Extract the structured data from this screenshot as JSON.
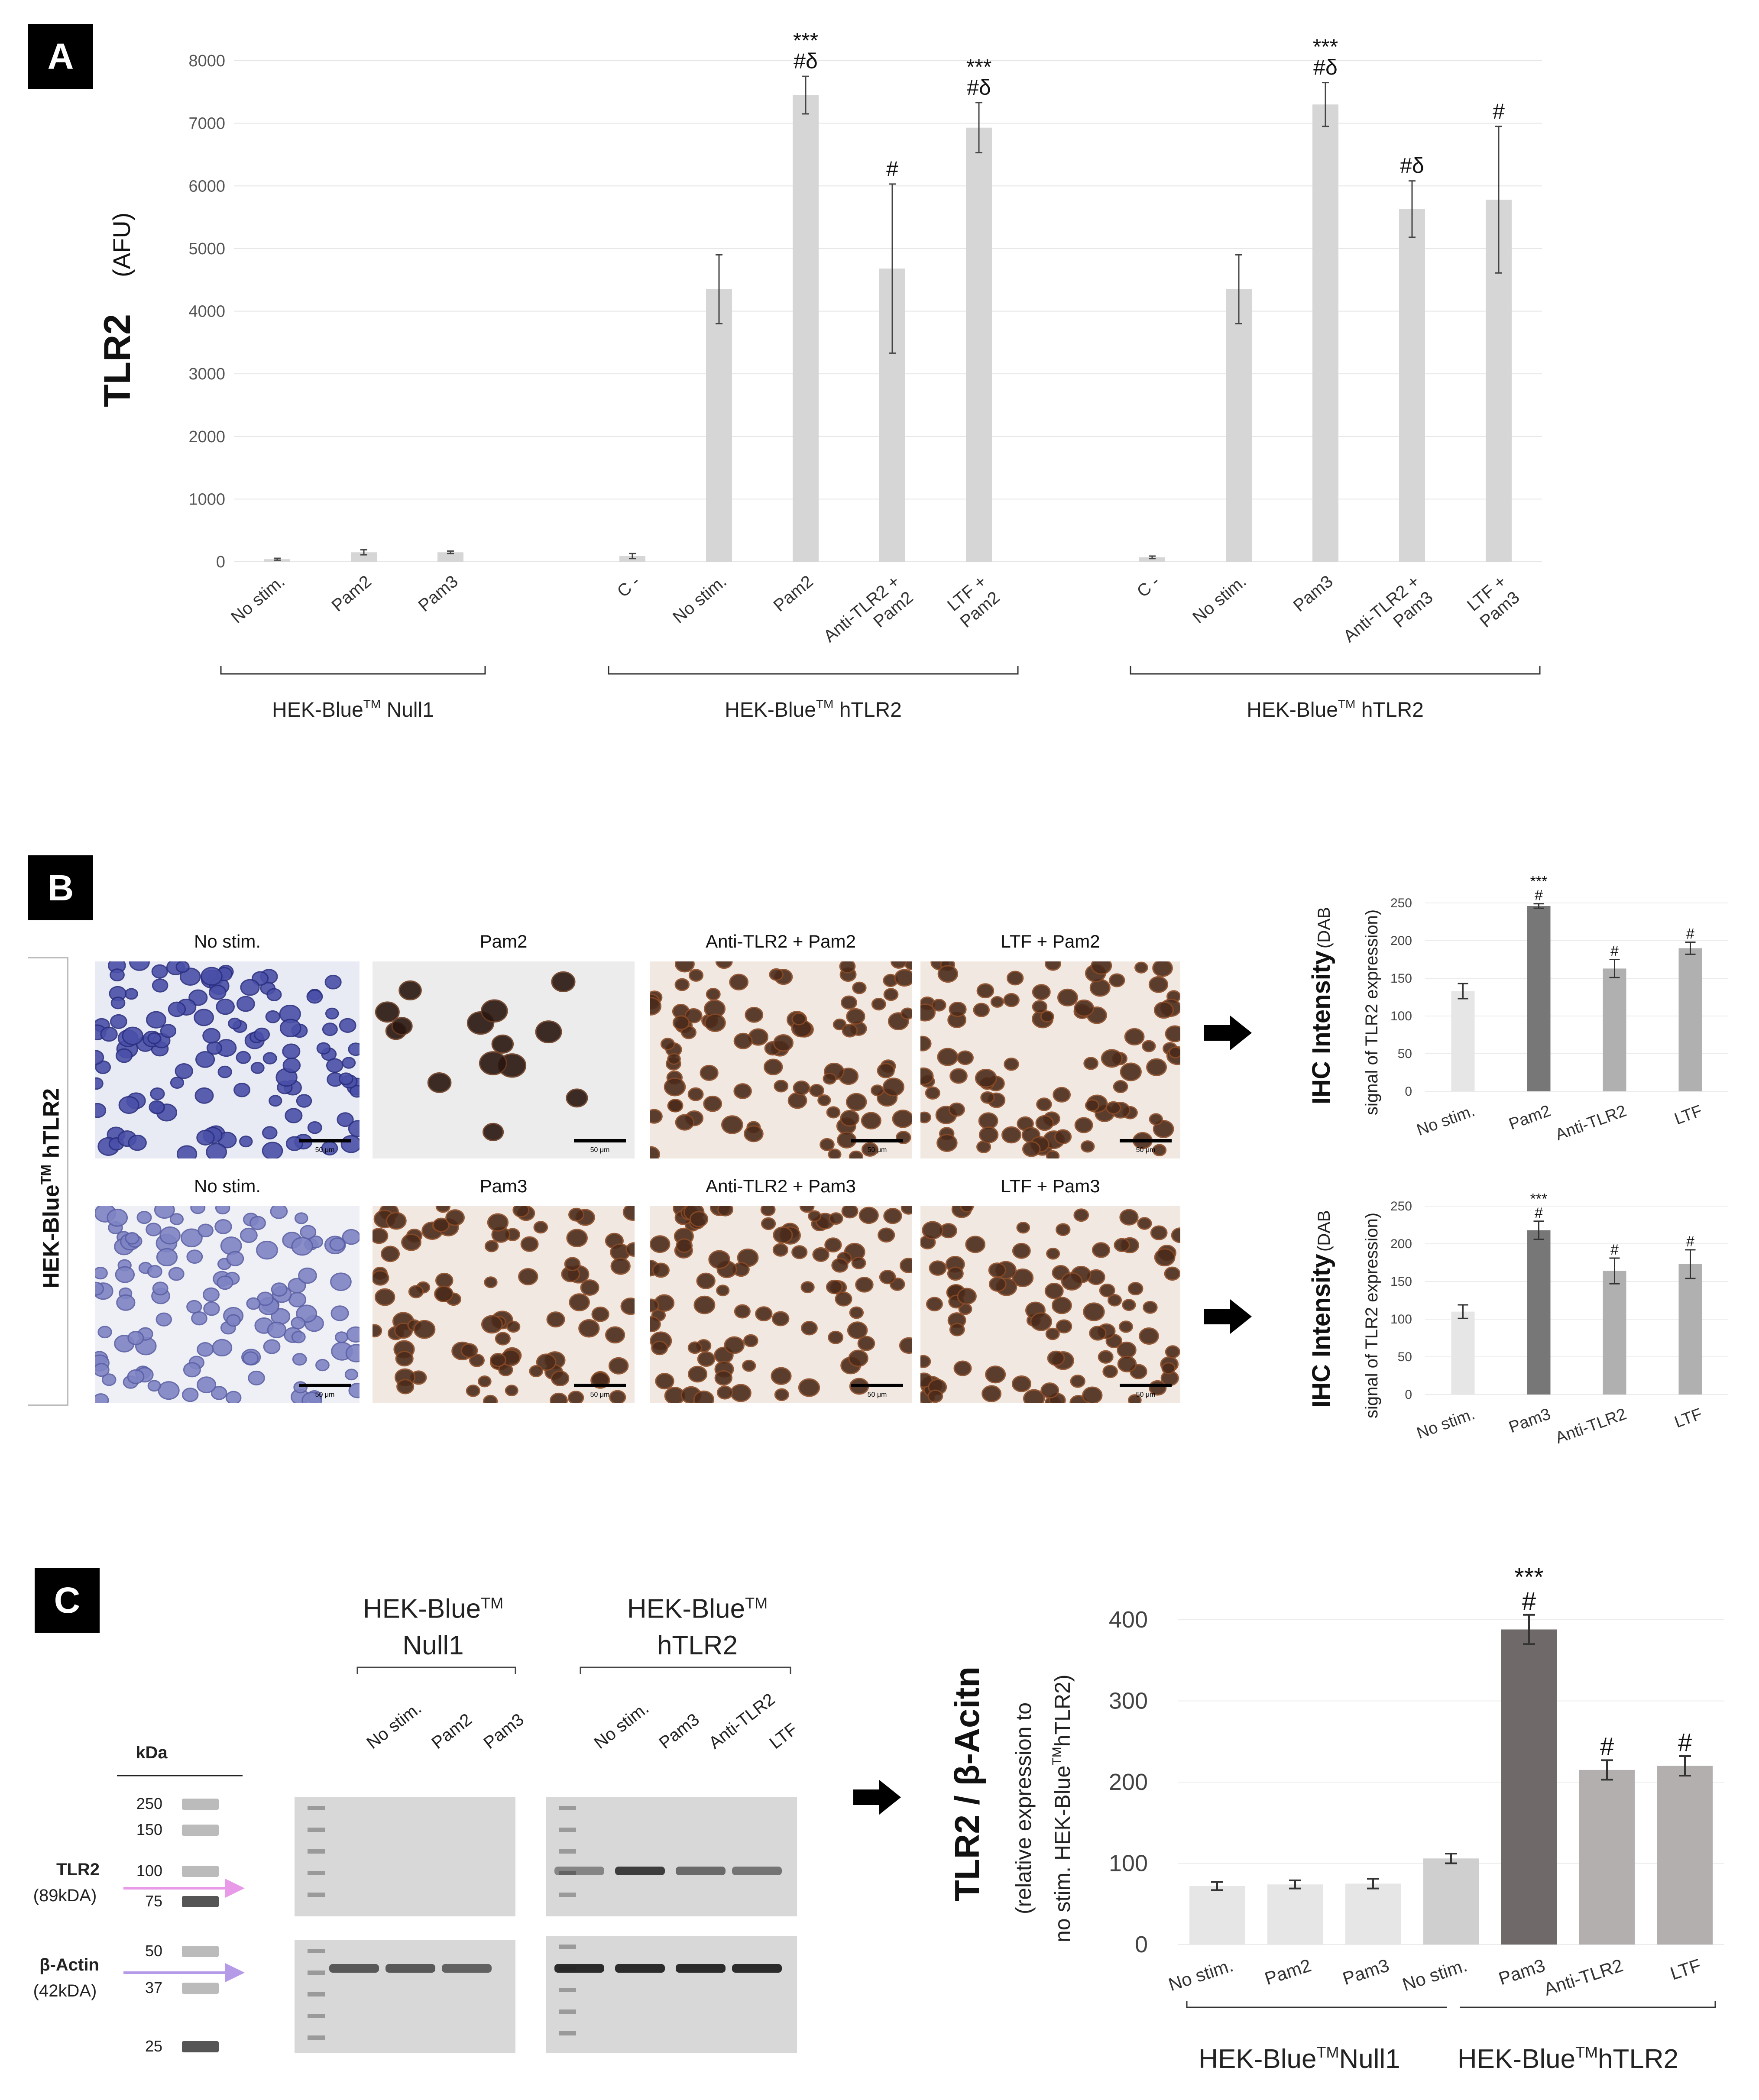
{
  "panels": {
    "a": {
      "label": "A"
    },
    "b": {
      "label": "B"
    },
    "c": {
      "label": "C"
    }
  },
  "chart_data": [
    {
      "id": "A",
      "type": "bar",
      "ylabel_main": "TLR2",
      "ylabel_unit": "(AFU)",
      "ylim": [
        0,
        8000
      ],
      "yticks": [
        0,
        1000,
        2000,
        3000,
        4000,
        5000,
        6000,
        7000,
        8000
      ],
      "groups": [
        {
          "label_pre": "HEK-Blue",
          "label_sup": "TM",
          "label_post": " Null1",
          "bars": [
            {
              "category": "No stim.",
              "value": 40,
              "err": 15,
              "annot": ""
            },
            {
              "category": "Pam2",
              "value": 150,
              "err": 40,
              "annot": ""
            },
            {
              "category": "Pam3",
              "value": 150,
              "err": 20,
              "annot": ""
            }
          ]
        },
        {
          "label_pre": "HEK-Blue",
          "label_sup": "TM",
          "label_post": " hTLR2",
          "bars": [
            {
              "category": "C -",
              "value": 90,
              "err": 40,
              "annot": ""
            },
            {
              "category": "No stim.",
              "value": 4350,
              "err": 550,
              "annot": ""
            },
            {
              "category": "Pam2",
              "value": 7450,
              "err": 300,
              "annot": "***|#δ"
            },
            {
              "category": "Anti-TLR2 + Pam2",
              "value": 4680,
              "err": 1350,
              "annot": "#"
            },
            {
              "category": "LTF + Pam2",
              "value": 6930,
              "err": 400,
              "annot": "***|#δ"
            }
          ]
        },
        {
          "label_pre": "HEK-Blue",
          "label_sup": "TM",
          "label_post": " hTLR2",
          "bars": [
            {
              "category": "C -",
              "value": 70,
              "err": 20,
              "annot": ""
            },
            {
              "category": "No stim.",
              "value": 4350,
              "err": 550,
              "annot": ""
            },
            {
              "category": "Pam3",
              "value": 7300,
              "err": 350,
              "annot": "***|#δ"
            },
            {
              "category": "Anti-TLR2 + Pam3",
              "value": 5630,
              "err": 450,
              "annot": "#δ"
            },
            {
              "category": "LTF + Pam3",
              "value": 5780,
              "err": 1170,
              "annot": "#"
            }
          ]
        }
      ]
    },
    {
      "id": "B-top",
      "type": "bar",
      "ylabel_main": "IHC Intensity",
      "ylabel_unit": "(DAB",
      "ylabel_sub": "signal of TLR2 expression)",
      "ylim": [
        0,
        250
      ],
      "yticks": [
        0,
        50,
        100,
        150,
        200,
        250
      ],
      "categories": [
        "No stim.",
        "Pam2",
        "Anti-TLR2",
        "LTF"
      ],
      "values": [
        133,
        246,
        163,
        190
      ],
      "errors": [
        10,
        3,
        12,
        8
      ],
      "annotations": [
        "",
        "***|#",
        "#",
        "#"
      ],
      "colors": [
        "#e6e6e6",
        "#777777",
        "#b0b0b0",
        "#b0b0b0"
      ]
    },
    {
      "id": "B-bottom",
      "type": "bar",
      "ylabel_main": "IHC Intensity",
      "ylabel_unit": "(DAB",
      "ylabel_sub": "signal of TLR2 expression)",
      "ylim": [
        0,
        250
      ],
      "yticks": [
        0,
        50,
        100,
        150,
        200,
        250
      ],
      "categories": [
        "No stim.",
        "Pam3",
        "Anti-TLR2",
        "LTF"
      ],
      "values": [
        110,
        218,
        164,
        173
      ],
      "errors": [
        9,
        12,
        17,
        19
      ],
      "annotations": [
        "",
        "***|#",
        "#",
        "#"
      ],
      "colors": [
        "#e6e6e6",
        "#777777",
        "#b0b0b0",
        "#b0b0b0"
      ]
    },
    {
      "id": "C",
      "type": "bar",
      "ylabel_main": "TLR2 / β-Acitn",
      "ylabel_sub1": "(relative expression to",
      "ylabel_sub2_pre": "no stim. HEK-Blue",
      "ylabel_sub2_sup": "TM",
      "ylabel_sub2_post": "hTLR2)",
      "ylim": [
        0,
        400
      ],
      "yticks": [
        0,
        100,
        200,
        300,
        400
      ],
      "categories": [
        "No stim.",
        "Pam2",
        "Pam3",
        "No stim.",
        "Pam3",
        "Anti-TLR2",
        "LTF"
      ],
      "values": [
        72,
        74,
        75,
        106,
        388,
        215,
        220
      ],
      "errors": [
        5,
        5,
        6,
        6,
        18,
        12,
        12
      ],
      "annotations": [
        "",
        "",
        "",
        "",
        "***|#",
        "#",
        "#"
      ],
      "colors": [
        "#e6e6e6",
        "#e6e6e6",
        "#e6e6e6",
        "#cfcfcf",
        "#6f6969",
        "#b3afaf",
        "#b3afaf"
      ],
      "group_labels": [
        {
          "pre": "HEK-Blue",
          "sup": "TM",
          "post": "Null1"
        },
        {
          "pre": "HEK-Blue",
          "sup": "TM",
          "post": "hTLR2"
        }
      ]
    }
  ],
  "panel_b": {
    "side_label_pre": "HEK-Blue",
    "side_label_sup": "TM",
    "side_label_post": " hTLR2",
    "row1_titles": [
      "No stim.",
      "Pam2",
      "Anti-TLR2 + Pam2",
      "LTF  + Pam2"
    ],
    "row2_titles": [
      "No stim.",
      "Pam3",
      "Anti-TLR2 + Pam3",
      "LTF  + Pam3"
    ],
    "scale_text": "50 μm"
  },
  "panel_c_blot": {
    "header1_pre": "HEK-Blue",
    "header1_sup": "TM",
    "header1_post": "Null1",
    "header2_pre": "HEK-Blue",
    "header2_sup": "TM",
    "header2_post": "hTLR2",
    "lanes1": [
      "No stim.",
      "Pam2",
      "Pam3"
    ],
    "lanes2": [
      "No stim.",
      "Pam3",
      "Anti-TLR2",
      "LTF"
    ],
    "kda_label": "kDa",
    "ladder": [
      "250",
      "150",
      "100",
      "75",
      "50",
      "37",
      "25"
    ],
    "tlr2_label": "TLR2",
    "tlr2_kda": "(89kDA)",
    "actin_label": "β-Actin",
    "actin_kda": "(42kDA)"
  }
}
